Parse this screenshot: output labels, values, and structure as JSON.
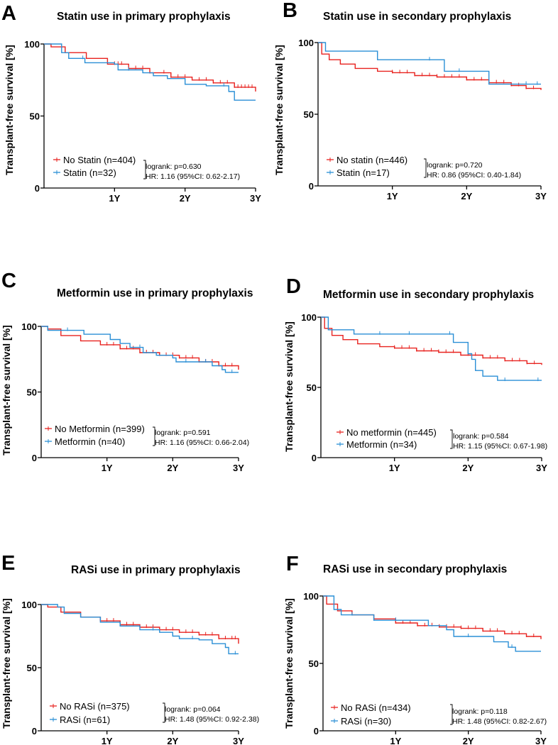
{
  "colors": {
    "no_drug": "#e8221f",
    "drug": "#2a8fd6"
  },
  "chart_data": [
    {
      "type": "line",
      "panel_label": "A",
      "title": "Statin use in primary prophylaxis",
      "ylabel": "Transplant-free survival [%]",
      "yticks": [
        "100",
        "50",
        "0"
      ],
      "xticks": [
        "1Y",
        "2Y",
        "3Y"
      ],
      "xlim": [
        0,
        3
      ],
      "ylim": [
        0,
        100
      ],
      "x_unit": "years",
      "y_unit": "%",
      "stats": {
        "logrank": "logrank: p=0.630",
        "hr": "HR: 1.16 (95%CI: 0.62-2.17)"
      },
      "series": [
        {
          "name": "No Statin (n=404)",
          "color": "#e8221f",
          "points": [
            [
              0,
              100
            ],
            [
              0.1,
              98
            ],
            [
              0.3,
              94
            ],
            [
              0.6,
              90
            ],
            [
              0.9,
              86
            ],
            [
              1.2,
              83
            ],
            [
              1.5,
              80
            ],
            [
              1.8,
              77
            ],
            [
              2.1,
              75
            ],
            [
              2.4,
              73
            ],
            [
              2.7,
              70
            ],
            [
              3.0,
              67
            ]
          ],
          "censor": [
            1.0,
            1.05,
            1.1,
            1.3,
            1.4,
            1.5,
            1.7,
            1.8,
            1.9,
            2.0,
            2.2,
            2.3,
            2.4,
            2.5,
            2.6,
            2.7,
            2.75,
            2.8,
            2.85,
            2.9,
            2.95
          ]
        },
        {
          "name": "Statin (n=32)",
          "color": "#2a8fd6",
          "points": [
            [
              0,
              100
            ],
            [
              0.25,
              94
            ],
            [
              0.35,
              90
            ],
            [
              0.55,
              90
            ],
            [
              0.58,
              87
            ],
            [
              1.0,
              86
            ],
            [
              1.05,
              82
            ],
            [
              1.4,
              80
            ],
            [
              1.55,
              78
            ],
            [
              1.75,
              76
            ],
            [
              2.0,
              72
            ],
            [
              2.3,
              71
            ],
            [
              2.6,
              71
            ],
            [
              2.62,
              67
            ],
            [
              2.7,
              61
            ],
            [
              3.0,
              61
            ]
          ],
          "censor": [
            0.55,
            1.2,
            2.55
          ]
        }
      ]
    },
    {
      "type": "line",
      "panel_label": "B",
      "title": "Statin use in secondary prophylaxis",
      "ylabel": "Transplant-free survival [%]",
      "yticks": [
        "100",
        "50",
        "0"
      ],
      "xticks": [
        "1Y",
        "2Y",
        "3Y"
      ],
      "xlim": [
        0,
        3
      ],
      "ylim": [
        0,
        100
      ],
      "x_unit": "years",
      "y_unit": "%",
      "stats": {
        "logrank": "logrank: p=0.720",
        "hr": "HR: 0.86 (95%CI: 0.40-1.84)"
      },
      "series": [
        {
          "name": "No statin (n=446)",
          "color": "#e8221f",
          "points": [
            [
              0,
              100
            ],
            [
              0.05,
              92
            ],
            [
              0.15,
              88
            ],
            [
              0.3,
              85
            ],
            [
              0.5,
              82
            ],
            [
              0.8,
              80
            ],
            [
              1.0,
              79
            ],
            [
              1.3,
              77
            ],
            [
              1.6,
              76
            ],
            [
              2.0,
              74
            ],
            [
              2.3,
              72
            ],
            [
              2.6,
              70
            ],
            [
              2.8,
              68
            ],
            [
              3.0,
              67
            ]
          ],
          "censor": [
            1.0,
            1.1,
            1.2,
            1.3,
            1.4,
            1.5,
            1.6,
            1.7,
            1.8,
            1.9,
            2.0,
            2.1,
            2.2,
            2.3,
            2.4,
            2.5,
            2.6,
            2.7,
            2.8,
            2.9
          ]
        },
        {
          "name": "Statin (n=17)",
          "color": "#2a8fd6",
          "points": [
            [
              0,
              100
            ],
            [
              0.1,
              94
            ],
            [
              0.8,
              94
            ],
            [
              0.8,
              88
            ],
            [
              1.7,
              88
            ],
            [
              1.7,
              80
            ],
            [
              2.3,
              80
            ],
            [
              2.3,
              71
            ],
            [
              3.0,
              71
            ]
          ],
          "censor": [
            1.5,
            1.9,
            2.8,
            2.95
          ]
        }
      ]
    },
    {
      "type": "line",
      "panel_label": "C",
      "title": "Metformin use in primary prophylaxis",
      "ylabel": "Transplant-free survival [%]",
      "yticks": [
        "100",
        "50",
        "0"
      ],
      "xticks": [
        "1Y",
        "2Y",
        "3Y"
      ],
      "xlim": [
        0,
        3
      ],
      "ylim": [
        0,
        100
      ],
      "x_unit": "years",
      "y_unit": "%",
      "stats": {
        "logrank": "logrank: p=0.591",
        "hr": "HR: 1.16 (95%CI: 0.66-2.04)"
      },
      "series": [
        {
          "name": "No Metformin (n=399)",
          "color": "#e8221f",
          "points": [
            [
              0,
              100
            ],
            [
              0.1,
              98
            ],
            [
              0.3,
              93
            ],
            [
              0.6,
              89
            ],
            [
              0.9,
              86
            ],
            [
              1.2,
              83
            ],
            [
              1.5,
              80
            ],
            [
              1.8,
              78
            ],
            [
              2.1,
              76
            ],
            [
              2.4,
              73
            ],
            [
              2.7,
              70
            ],
            [
              3.0,
              67
            ]
          ],
          "censor": [
            1.0,
            1.1,
            1.2,
            1.3,
            1.4,
            1.5,
            1.6,
            1.7,
            1.8,
            1.9,
            2.0,
            2.1,
            2.2,
            2.3,
            2.4,
            2.5,
            2.6,
            2.7,
            2.8,
            2.9
          ]
        },
        {
          "name": "Metformin (n=40)",
          "color": "#2a8fd6",
          "points": [
            [
              0,
              100
            ],
            [
              0.1,
              97
            ],
            [
              0.6,
              97
            ],
            [
              0.65,
              94
            ],
            [
              1.0,
              94
            ],
            [
              1.05,
              90
            ],
            [
              1.2,
              87
            ],
            [
              1.35,
              84
            ],
            [
              1.55,
              80
            ],
            [
              1.75,
              78
            ],
            [
              2.0,
              76
            ],
            [
              2.05,
              73
            ],
            [
              2.5,
              73
            ],
            [
              2.6,
              70
            ],
            [
              2.75,
              67
            ],
            [
              2.8,
              65
            ],
            [
              3.0,
              65
            ]
          ],
          "censor": [
            0.4,
            1.5,
            2.2,
            2.5,
            2.9
          ]
        }
      ]
    },
    {
      "type": "line",
      "panel_label": "D",
      "title": "Metformin use in secondary prophylaxis",
      "ylabel": "Transplant-free survival [%]",
      "yticks": [
        "100",
        "50",
        "0"
      ],
      "xticks": [
        "1Y",
        "2Y",
        "3Y"
      ],
      "xlim": [
        0,
        3
      ],
      "ylim": [
        0,
        100
      ],
      "x_unit": "years",
      "y_unit": "%",
      "stats": {
        "logrank": "logrank: p=0.584",
        "hr": "HR: 1.15 (95%CI: 0.67-1.98)"
      },
      "series": [
        {
          "name": "No metformin (n=445)",
          "color": "#e8221f",
          "points": [
            [
              0,
              100
            ],
            [
              0.05,
              92
            ],
            [
              0.15,
              87
            ],
            [
              0.3,
              84
            ],
            [
              0.5,
              81
            ],
            [
              0.8,
              79
            ],
            [
              1.0,
              78
            ],
            [
              1.3,
              76
            ],
            [
              1.6,
              75
            ],
            [
              1.9,
              73
            ],
            [
              2.2,
              71
            ],
            [
              2.5,
              69
            ],
            [
              2.8,
              67
            ],
            [
              3.0,
              66
            ]
          ],
          "censor": [
            1.0,
            1.1,
            1.2,
            1.3,
            1.4,
            1.5,
            1.6,
            1.7,
            1.8,
            1.9,
            2.0,
            2.1,
            2.2,
            2.3,
            2.4,
            2.5,
            2.6,
            2.7,
            2.8,
            2.9
          ]
        },
        {
          "name": "Metformin (n=34)",
          "color": "#2a8fd6",
          "points": [
            [
              0,
              100
            ],
            [
              0.1,
              91
            ],
            [
              0.4,
              91
            ],
            [
              0.45,
              88
            ],
            [
              1.75,
              88
            ],
            [
              1.8,
              82
            ],
            [
              1.95,
              82
            ],
            [
              2.0,
              74
            ],
            [
              2.05,
              70
            ],
            [
              2.1,
              62
            ],
            [
              2.2,
              58
            ],
            [
              2.35,
              58
            ],
            [
              2.4,
              55
            ],
            [
              3.0,
              55
            ]
          ],
          "censor": [
            0.8,
            1.2,
            1.75,
            2.5,
            2.95
          ]
        }
      ]
    },
    {
      "type": "line",
      "panel_label": "E",
      "title": "RASi use in primary prophylaxis",
      "ylabel": "Transplant-free survival [%]",
      "yticks": [
        "100",
        "50",
        "0"
      ],
      "xticks": [
        "1Y",
        "2Y",
        "3Y"
      ],
      "xlim": [
        0,
        3
      ],
      "ylim": [
        0,
        100
      ],
      "x_unit": "years",
      "y_unit": "%",
      "stats": {
        "logrank": "logrank: p=0.064",
        "hr": "HR: 1.48 (95%CI: 0.92-2.38)"
      },
      "series": [
        {
          "name": "No RASi (n=375)",
          "color": "#e8221f",
          "points": [
            [
              0,
              100
            ],
            [
              0.1,
              98
            ],
            [
              0.3,
              94
            ],
            [
              0.6,
              90
            ],
            [
              0.9,
              87
            ],
            [
              1.2,
              84
            ],
            [
              1.5,
              82
            ],
            [
              1.8,
              80
            ],
            [
              2.1,
              78
            ],
            [
              2.4,
              76
            ],
            [
              2.7,
              73
            ],
            [
              3.0,
              69
            ]
          ],
          "censor": [
            0.9,
            1.0,
            1.1,
            1.2,
            1.3,
            1.4,
            1.5,
            1.6,
            1.7,
            1.8,
            1.9,
            2.0,
            2.1,
            2.2,
            2.3,
            2.4,
            2.5,
            2.6,
            2.7,
            2.8,
            2.9,
            2.95
          ]
        },
        {
          "name": "RASi (n=61)",
          "color": "#2a8fd6",
          "points": [
            [
              0,
              100
            ],
            [
              0.2,
              100
            ],
            [
              0.25,
              98
            ],
            [
              0.35,
              93
            ],
            [
              0.6,
              90
            ],
            [
              0.9,
              86
            ],
            [
              1.2,
              83
            ],
            [
              1.5,
              80
            ],
            [
              1.8,
              78
            ],
            [
              2.0,
              75
            ],
            [
              2.1,
              73
            ],
            [
              2.4,
              72
            ],
            [
              2.6,
              69
            ],
            [
              2.8,
              66
            ],
            [
              2.85,
              61
            ],
            [
              3.0,
              61
            ]
          ],
          "censor": [
            1.7,
            2.3,
            2.95
          ]
        }
      ]
    },
    {
      "type": "line",
      "panel_label": "F",
      "title": "RASi use in secondary prophylaxis",
      "ylabel": "Transplant-free survival [%]",
      "yticks": [
        "100",
        "50",
        "0"
      ],
      "xticks": [
        "1Y",
        "2Y",
        "3Y"
      ],
      "xlim": [
        0,
        3
      ],
      "ylim": [
        0,
        100
      ],
      "x_unit": "years",
      "y_unit": "%",
      "stats": {
        "logrank": "logrank: p=0.118",
        "hr": "HR: 1.48 (95%CI: 0.82-2.67)"
      },
      "series": [
        {
          "name": "No RASi (n=434)",
          "color": "#e8221f",
          "points": [
            [
              0,
              100
            ],
            [
              0.05,
              94
            ],
            [
              0.2,
              89
            ],
            [
              0.4,
              86
            ],
            [
              0.7,
              83
            ],
            [
              1.0,
              80
            ],
            [
              1.3,
              78
            ],
            [
              1.6,
              77
            ],
            [
              1.9,
              76
            ],
            [
              2.2,
              74
            ],
            [
              2.5,
              72
            ],
            [
              2.8,
              70
            ],
            [
              3.0,
              68
            ]
          ],
          "censor": [
            1.0,
            1.1,
            1.2,
            1.3,
            1.4,
            1.5,
            1.6,
            1.7,
            1.8,
            1.9,
            2.0,
            2.1,
            2.2,
            2.3,
            2.4,
            2.5,
            2.6,
            2.7,
            2.8,
            2.9
          ]
        },
        {
          "name": "RASi (n=30)",
          "color": "#2a8fd6",
          "points": [
            [
              0,
              100
            ],
            [
              0.15,
              90
            ],
            [
              0.25,
              86
            ],
            [
              0.6,
              86
            ],
            [
              0.7,
              82
            ],
            [
              1.4,
              82
            ],
            [
              1.45,
              78
            ],
            [
              1.65,
              78
            ],
            [
              1.7,
              75
            ],
            [
              1.8,
              70
            ],
            [
              2.3,
              70
            ],
            [
              2.35,
              66
            ],
            [
              2.5,
              66
            ],
            [
              2.55,
              62
            ],
            [
              2.65,
              59
            ],
            [
              3.0,
              59
            ]
          ],
          "censor": [
            0.4,
            1.0,
            2.0,
            2.6
          ]
        }
      ]
    }
  ]
}
